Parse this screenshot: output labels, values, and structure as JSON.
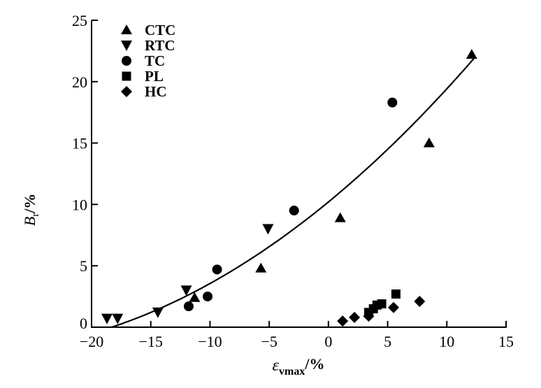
{
  "chart_data": {
    "type": "scatter",
    "title": "",
    "xlabel": {
      "symbol": "ε",
      "subscript": "vmax",
      "unit": "/%"
    },
    "ylabel": {
      "symbol": "B",
      "subscript": "r",
      "unit": "/%"
    },
    "xlim": [
      -20,
      15
    ],
    "ylim": [
      0,
      25
    ],
    "xticks": [
      -20,
      -15,
      -10,
      -5,
      0,
      5,
      10,
      15
    ],
    "xtick_labels": [
      "−20",
      "−15",
      "−10",
      "−5",
      "0",
      "5",
      "10",
      "15"
    ],
    "yticks": [
      0,
      5,
      10,
      15,
      20,
      25
    ],
    "ytick_labels": [
      "0",
      "5",
      "10",
      "15",
      "20",
      "25"
    ],
    "grid": false,
    "legend_position": "top-left",
    "series": [
      {
        "name": "CTC",
        "marker": "triangle-up",
        "color": "#000000",
        "points": [
          [
            -11.3,
            2.4
          ],
          [
            -5.7,
            4.8
          ],
          [
            1.0,
            8.9
          ],
          [
            8.5,
            15.0
          ],
          [
            12.1,
            22.2
          ]
        ]
      },
      {
        "name": "RTC",
        "marker": "triangle-down",
        "color": "#000000",
        "points": [
          [
            -18.7,
            0.7
          ],
          [
            -17.8,
            0.7
          ],
          [
            -14.4,
            1.2
          ],
          [
            -12.0,
            3.0
          ],
          [
            -5.1,
            8.0
          ]
        ]
      },
      {
        "name": "TC",
        "marker": "circle",
        "color": "#000000",
        "points": [
          [
            -11.8,
            1.7
          ],
          [
            -10.2,
            2.5
          ],
          [
            -9.4,
            4.7
          ],
          [
            -2.9,
            9.5
          ],
          [
            5.4,
            18.3
          ]
        ]
      },
      {
        "name": "PL",
        "marker": "square",
        "color": "#000000",
        "points": [
          [
            3.4,
            1.2
          ],
          [
            3.8,
            1.5
          ],
          [
            4.1,
            1.8
          ],
          [
            4.5,
            1.9
          ],
          [
            5.7,
            2.7
          ]
        ]
      },
      {
        "name": "HC",
        "marker": "diamond",
        "color": "#000000",
        "points": [
          [
            1.2,
            0.5
          ],
          [
            2.2,
            0.8
          ],
          [
            3.4,
            0.9
          ],
          [
            5.5,
            1.6
          ],
          [
            7.7,
            2.1
          ]
        ]
      }
    ],
    "fit_curve": {
      "type": "line",
      "x_range": [
        -18.3,
        12.3
      ],
      "coefficients_quadratic": [
        10.2,
        0.793,
        0.01287
      ]
    }
  }
}
